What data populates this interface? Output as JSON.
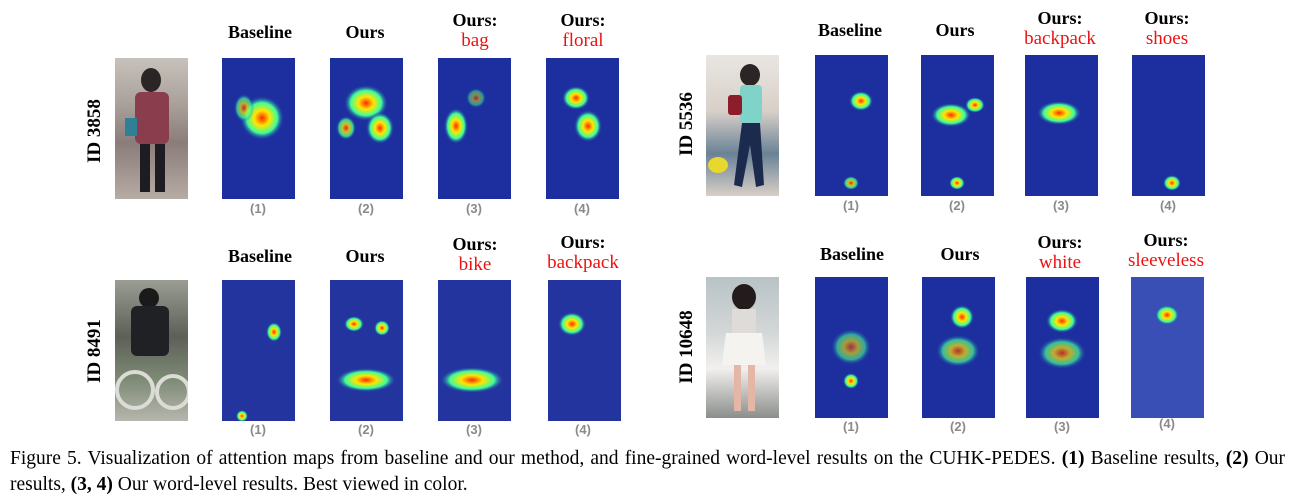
{
  "columns": {
    "baseline": "Baseline",
    "ours": "Ours",
    "ours_word": "Ours:"
  },
  "panels": [
    {
      "id": "ID 3858",
      "words": [
        "bag",
        "floral"
      ]
    },
    {
      "id": "ID 5536",
      "words": [
        "backpack",
        "shoes"
      ]
    },
    {
      "id": "ID 8491",
      "words": [
        "bike",
        "backpack"
      ]
    },
    {
      "id": "ID 10648",
      "words": [
        "white",
        "sleeveless"
      ]
    }
  ],
  "subfig_labels": [
    "(1)",
    "(2)",
    "(3)",
    "(4)"
  ],
  "caption": {
    "prefix": "Figure 5. Visualization of attention maps from baseline and our method, and fine-grained word-level results on the CUHK-PEDES.",
    "n1": "(1)",
    "t1": "Baseline results,",
    "n2": "(2)",
    "t2": "Our results,",
    "n34": "(3, 4)",
    "t3": "Our word-level results. Best viewed in color."
  },
  "colors": {
    "word": "#ee1111",
    "heat_base": "#2236b4",
    "subfig_label": "#8a8a8a"
  }
}
